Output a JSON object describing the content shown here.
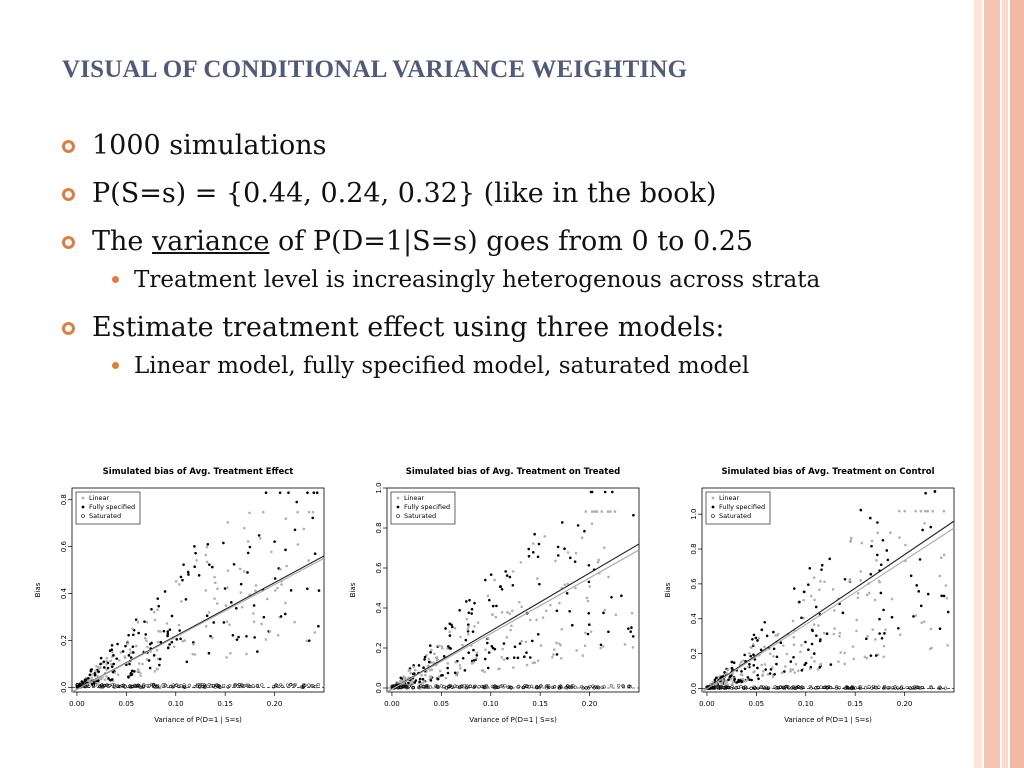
{
  "title": "VISUAL OF CONDITIONAL VARIANCE WEIGHTING",
  "bullets": {
    "b1": "1000 simulations",
    "b2": "P(S=s) = {0.44, 0.24, 0.32} (like in the book)",
    "b3_pre": "The ",
    "b3_u": "variance",
    "b3_post": " of P(D=1|S=s) goes from 0 to 0.25",
    "b3_sub": "Treatment level is increasingly heterogenous across strata",
    "b4": "Estimate treatment effect using three models:",
    "b4_sub": "Linear model, fully specified model, saturated model"
  },
  "colors": {
    "accent": "#e07d3c",
    "title": "#505a7a",
    "stripe_light": "#fbd9cc",
    "stripe_dark": "#f2b9a3"
  },
  "chart_data": [
    {
      "type": "scatter",
      "title": "Simulated bias of Avg. Treatment Effect",
      "xlabel": "Variance of P(D=1 | S=s)",
      "ylabel": "Bias",
      "xlim": [
        -0.005,
        0.25
      ],
      "ylim": [
        -0.02,
        0.85
      ],
      "xticks": [
        0.0,
        0.05,
        0.1,
        0.15,
        0.2
      ],
      "xtick_labels": [
        "0.00",
        "0.05",
        "0.10",
        "0.15",
        "0.20"
      ],
      "yticks": [
        0.0,
        0.2,
        0.4,
        0.6,
        0.8
      ],
      "ytick_labels": [
        "0.0",
        "0.2",
        "0.4",
        "0.6",
        "0.8"
      ],
      "legend": [
        "Linear",
        "Fully specified",
        "Saturated"
      ],
      "legend_position": "top-left",
      "fit_lines": [
        {
          "series": "Fully specified",
          "x": [
            -0.005,
            0.25
          ],
          "y": [
            -0.02,
            0.56
          ]
        },
        {
          "series": "Linear",
          "x": [
            -0.005,
            0.25
          ],
          "y": [
            -0.02,
            0.55
          ]
        }
      ],
      "seed": 11,
      "ymax_scale": 0.62
    },
    {
      "type": "scatter",
      "title": "Simulated bias of Avg. Treatment on Treated",
      "xlabel": "Variance of P(D=1 | S=s)",
      "ylabel": "Bias",
      "xlim": [
        -0.005,
        0.25
      ],
      "ylim": [
        -0.02,
        1.0
      ],
      "xticks": [
        0.0,
        0.05,
        0.1,
        0.15,
        0.2
      ],
      "xtick_labels": [
        "0.00",
        "0.05",
        "0.10",
        "0.15",
        "0.20"
      ],
      "yticks": [
        0.0,
        0.2,
        0.4,
        0.6,
        0.8,
        1.0
      ],
      "ytick_labels": [
        "0.0",
        "0.2",
        "0.4",
        "0.6",
        "0.8",
        "1.0"
      ],
      "legend": [
        "Linear",
        "Fully specified",
        "Saturated"
      ],
      "legend_position": "top-left",
      "fit_lines": [
        {
          "series": "Fully specified",
          "x": [
            -0.005,
            0.25
          ],
          "y": [
            -0.02,
            0.72
          ]
        },
        {
          "series": "Linear",
          "x": [
            -0.005,
            0.25
          ],
          "y": [
            -0.02,
            0.69
          ]
        }
      ],
      "seed": 23,
      "ymax_scale": 0.7
    },
    {
      "type": "scatter",
      "title": "Simulated bias of Avg. Treatment on Control",
      "xlabel": "Variance of P(D=1 | S=s)",
      "ylabel": "Bias",
      "xlim": [
        -0.005,
        0.25
      ],
      "ylim": [
        -0.02,
        1.15
      ],
      "xticks": [
        0.0,
        0.05,
        0.1,
        0.15,
        0.2
      ],
      "xtick_labels": [
        "0.00",
        "0.05",
        "0.10",
        "0.15",
        "0.20"
      ],
      "yticks": [
        0.0,
        0.2,
        0.4,
        0.6,
        0.8,
        1.0
      ],
      "ytick_labels": [
        "0.0",
        "0.2",
        "0.4",
        "0.6",
        "0.8",
        "1.0"
      ],
      "legend": [
        "Linear",
        "Fully specified",
        "Saturated"
      ],
      "legend_position": "top-left",
      "fit_lines": [
        {
          "series": "Fully specified",
          "x": [
            -0.005,
            0.25
          ],
          "y": [
            -0.02,
            0.96
          ]
        },
        {
          "series": "Linear",
          "x": [
            -0.005,
            0.25
          ],
          "y": [
            -0.02,
            0.92
          ]
        }
      ],
      "seed": 37,
      "ymax_scale": 0.8
    }
  ]
}
